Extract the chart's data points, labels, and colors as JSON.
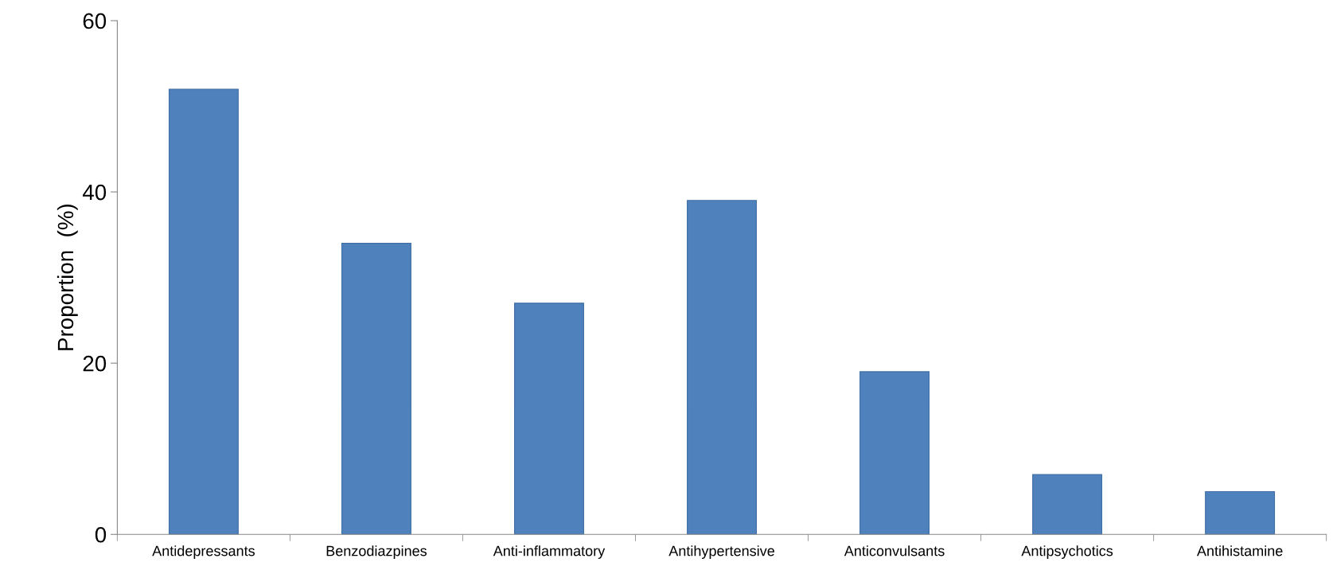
{
  "chart_data": {
    "type": "bar",
    "ylabel": "Proportion  (%)",
    "categories": [
      "Antidepressants",
      "Benzodiazpines",
      "Anti-inflammatory",
      "Antihypertensive",
      "Anticonvulsants",
      "Antipsychotics",
      "Antihistamine"
    ],
    "values": [
      52,
      34,
      27,
      39,
      19,
      7,
      5
    ],
    "color": "#4f81bd",
    "ylim": [
      0,
      60
    ],
    "yticks": [
      0,
      20,
      40,
      60
    ],
    "grid": false,
    "legend": false
  }
}
